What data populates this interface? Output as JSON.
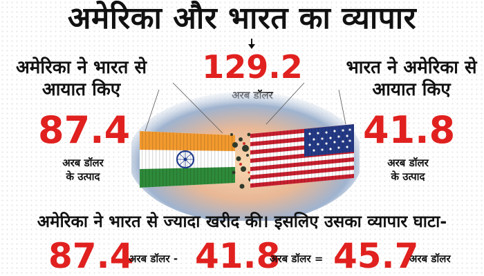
{
  "title": "अमेरिका और भारत का व्यापार",
  "center": {
    "value": "129.2",
    "unit": "अरब डॉलर"
  },
  "left": {
    "heading_line1": "अमेरिका ने भारत से",
    "heading_line2": "आयात किए",
    "value": "87.4",
    "unit_line1": "अरब डॉलर",
    "unit_line2": "के उत्पाद"
  },
  "right": {
    "heading_line1": "भारत ने अमेरिका से",
    "heading_line2": "आयात किए",
    "value": "41.8",
    "unit_line1": "अरब डॉलर",
    "unit_line2": "के उत्पाद"
  },
  "bottom": {
    "statement": "अमेरिका ने भारत से ज्यादा खरीद की। इसलिए उसका व्यापार घाटा-",
    "num1": "87.4",
    "unit1": "अरब डॉलर -",
    "num2": "41.8",
    "unit2": "अरब डॉलर =",
    "num3": "45.7",
    "unit3": "अरब डॉलर"
  },
  "colors": {
    "accent_red": "#e0211f",
    "text": "#111111",
    "saffron": "#f39a2e",
    "india_green": "#2e8b3a",
    "usa_red": "#c8202f",
    "usa_blue": "#243a86"
  }
}
